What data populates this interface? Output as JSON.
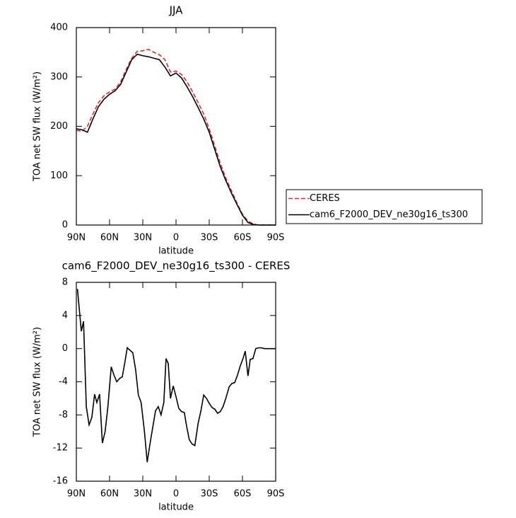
{
  "chart_data": [
    {
      "type": "line",
      "title": "JJA",
      "xlabel": "latitude",
      "ylabel": "TOA net SW flux (W/m²)",
      "x": [
        90,
        85,
        80,
        75,
        70,
        65,
        60,
        55,
        50,
        45,
        40,
        35,
        30,
        25,
        20,
        15,
        10,
        5,
        0,
        -5,
        -10,
        -15,
        -20,
        -25,
        -30,
        -35,
        -40,
        -45,
        -50,
        -55,
        -60,
        -65,
        -70,
        -75,
        -80,
        -85,
        -90
      ],
      "series": [
        {
          "name": "CERES",
          "color": "#e8262b",
          "linestyle": "dashed",
          "values": [
            192,
            190,
            200,
            225,
            248,
            262,
            270,
            275,
            290,
            315,
            338,
            352,
            353,
            356,
            350,
            345,
            335,
            310,
            312,
            305,
            290,
            270,
            248,
            225,
            195,
            160,
            125,
            95,
            70,
            45,
            22,
            8,
            2,
            0,
            0,
            0,
            0
          ]
        },
        {
          "name": "cam6_F2000_DEV_ne30g16_ts300",
          "color": "#000000",
          "linestyle": "solid",
          "values": [
            195,
            193,
            188,
            215,
            240,
            255,
            265,
            272,
            285,
            310,
            335,
            346,
            343,
            341,
            338,
            335,
            320,
            302,
            308,
            298,
            280,
            260,
            238,
            215,
            188,
            153,
            118,
            90,
            65,
            42,
            20,
            5,
            1,
            0,
            0,
            0,
            0
          ]
        }
      ],
      "xlim": [
        90,
        -90
      ],
      "ylim": [
        0,
        400
      ],
      "xticks": [
        {
          "value": 90,
          "label": "90N"
        },
        {
          "value": 60,
          "label": "60N"
        },
        {
          "value": 30,
          "label": "30N"
        },
        0,
        {
          "value": -30,
          "label": "30S"
        },
        {
          "value": -60,
          "label": "60S"
        },
        {
          "value": -90,
          "label": "90S"
        }
      ],
      "yticks": [
        0,
        100,
        200,
        300,
        400
      ],
      "legend": "right"
    },
    {
      "type": "line",
      "title": "cam6_F2000_DEV_ne30g16_ts300 - CERES",
      "xlabel": "latitude",
      "ylabel": "TOA net SW flux (W/m²)",
      "x": [
        89,
        85.5,
        83.5,
        81,
        78.5,
        76,
        73.5,
        71.5,
        69,
        66.5,
        64,
        61.5,
        58.5,
        56,
        53.5,
        51,
        48.5,
        46,
        44,
        41.5,
        39,
        36.5,
        34,
        31.5,
        28.5,
        26,
        23.5,
        21,
        18.5,
        16,
        13.5,
        11,
        9,
        7,
        5,
        2.5,
        0,
        -2.5,
        -5,
        -7.5,
        -9.5,
        -12,
        -14.5,
        -17,
        -20,
        -22.5,
        -25,
        -27.5,
        -30,
        -32.5,
        -35,
        -37.5,
        -40,
        -42.5,
        -45,
        -48,
        -50.5,
        -53,
        -55.5,
        -58,
        -60.5,
        -62.5,
        -65,
        -67,
        -69.5,
        -72,
        -74.5,
        -77,
        -80,
        -82.5,
        -90
      ],
      "series": [
        {
          "color": "#000000",
          "linestyle": "solid",
          "values": [
            7.2,
            2.1,
            3.3,
            -7,
            -9.2,
            -8.3,
            -5.5,
            -6.5,
            -5.5,
            -11.4,
            -10,
            -7,
            -2.2,
            -3.2,
            -4,
            -3.6,
            -3.4,
            -1.5,
            0.1,
            -0.2,
            -0.5,
            -2.5,
            -5.6,
            -6.5,
            -10,
            -13.7,
            -11.5,
            -9.5,
            -7.5,
            -7,
            -8,
            -6.5,
            -1.2,
            -1.8,
            -6,
            -4.5,
            -5.8,
            -7.2,
            -7.6,
            -7.7,
            -9.3,
            -11,
            -11.5,
            -11.7,
            -9,
            -7.5,
            -5.6,
            -6,
            -6.6,
            -7.1,
            -7.3,
            -7.8,
            -7.6,
            -7,
            -6,
            -4.6,
            -4.2,
            -4.1,
            -3.2,
            -2.1,
            -1.2,
            -0.3,
            -3.3,
            -1.3,
            -1.2,
            0,
            0.1,
            0.1,
            0,
            0,
            0
          ]
        }
      ],
      "xlim": [
        90,
        -90
      ],
      "ylim": [
        -16,
        8
      ],
      "xticks": [
        {
          "value": 90,
          "label": "90N"
        },
        {
          "value": 60,
          "label": "60N"
        },
        {
          "value": 30,
          "label": "30N"
        },
        0,
        {
          "value": -30,
          "label": "30S"
        },
        {
          "value": -60,
          "label": "60S"
        },
        {
          "value": -90,
          "label": "90S"
        }
      ],
      "yticks": [
        -16,
        -12,
        -8,
        -4,
        0,
        4,
        8
      ]
    }
  ]
}
